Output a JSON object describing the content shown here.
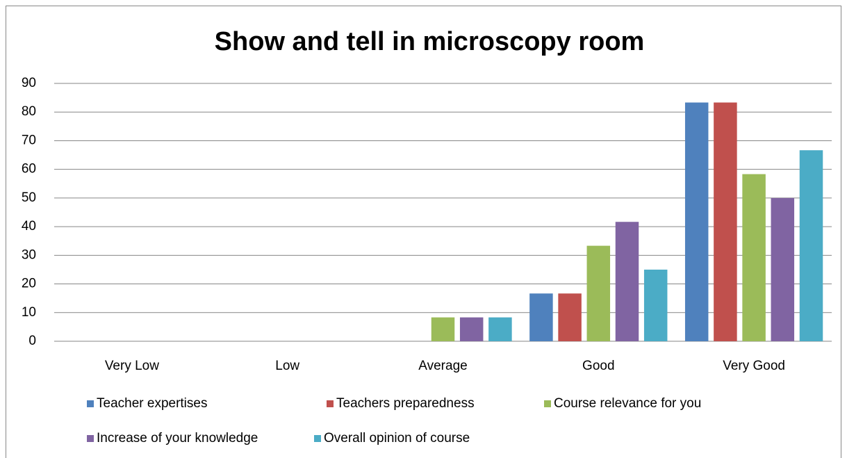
{
  "chart_data": {
    "type": "bar",
    "title": "Show and tell in microscopy room",
    "categories": [
      "Very Low",
      "Low",
      "Average",
      "Good",
      "Very Good"
    ],
    "series": [
      {
        "name": "Teacher expertises",
        "color": "#4f81bd",
        "values": [
          0,
          0,
          0,
          16.67,
          83.33
        ]
      },
      {
        "name": "Teachers preparedness",
        "color": "#c0504d",
        "values": [
          0,
          0,
          0,
          16.67,
          83.33
        ]
      },
      {
        "name": "Course relevance for you",
        "color": "#9bbb59",
        "values": [
          0,
          0,
          8.33,
          33.33,
          58.33
        ]
      },
      {
        "name": "Increase of your knowledge",
        "color": "#8064a2",
        "values": [
          0,
          0,
          8.33,
          41.67,
          50
        ]
      },
      {
        "name": "Overall opinion of course",
        "color": "#4bacc6",
        "values": [
          0,
          0,
          8.33,
          25,
          66.67
        ]
      }
    ],
    "ylim": [
      0,
      90
    ],
    "yticks": [
      0,
      10,
      20,
      30,
      40,
      50,
      60,
      70,
      80,
      90
    ],
    "grid": true,
    "legend": "bottom"
  }
}
